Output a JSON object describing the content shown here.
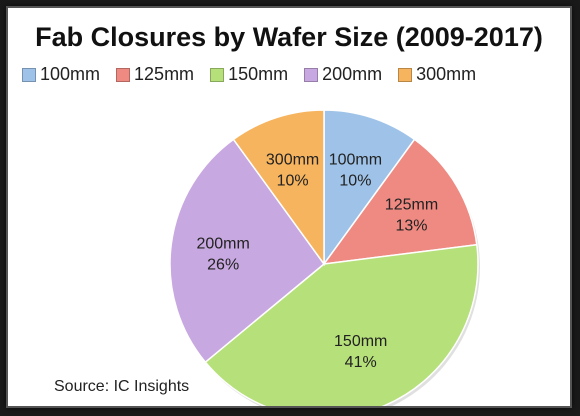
{
  "chart_data": {
    "type": "pie",
    "title": "Fab Closures by Wafer Size (2009-2017)",
    "source": "Source:  IC Insights",
    "slices": [
      {
        "label": "100mm",
        "value": 10,
        "pct_label": "10%",
        "color": "#9fc3e8"
      },
      {
        "label": "125mm",
        "value": 13,
        "pct_label": "13%",
        "color": "#ee8a82"
      },
      {
        "label": "150mm",
        "value": 41,
        "pct_label": "41%",
        "color": "#b6e07a"
      },
      {
        "label": "200mm",
        "value": 26,
        "pct_label": "26%",
        "color": "#c8a8e0"
      },
      {
        "label": "300mm",
        "value": 10,
        "pct_label": "10%",
        "color": "#f6b45e"
      }
    ],
    "legend_placement": "top"
  }
}
